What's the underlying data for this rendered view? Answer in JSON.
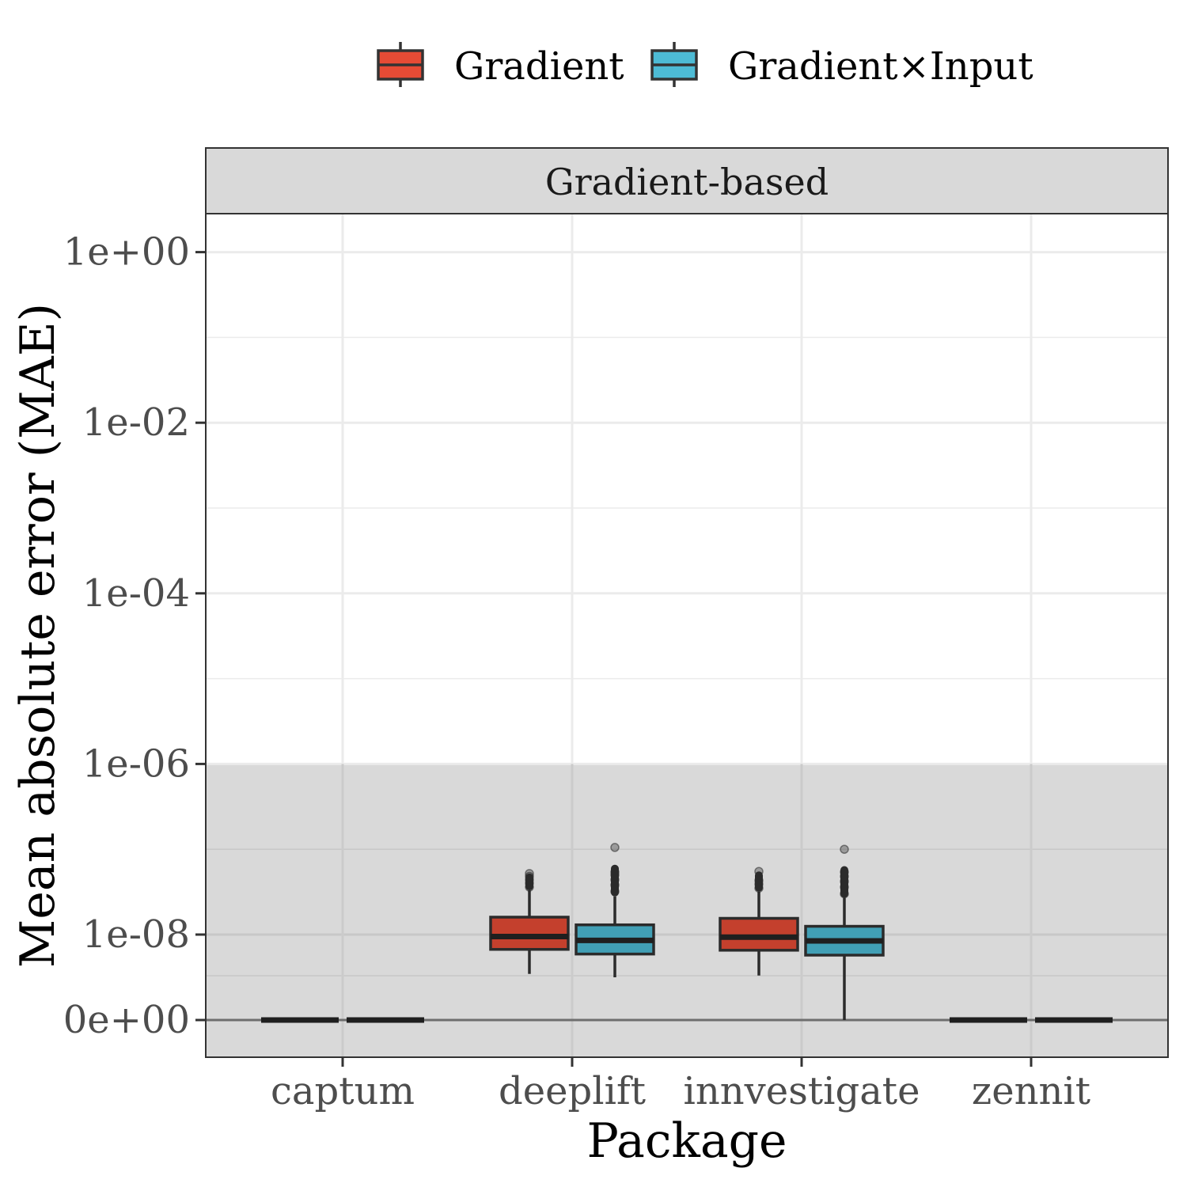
{
  "chart_data": {
    "type": "boxplot",
    "facet_title": "Gradient-based",
    "xlabel": "Package",
    "ylabel": "Mean absolute error (MAE)",
    "y_scale": "pseudo-log",
    "y_ticks": [
      "1e+00",
      "1e-02",
      "1e-04",
      "1e-06",
      "1e-08",
      "0e+00"
    ],
    "y_tick_values": [
      1,
      0.01,
      0.0001,
      1e-06,
      1e-08,
      0
    ],
    "shaded_region": {
      "from": 0,
      "to": 1e-06
    },
    "legend_position": "top",
    "grid": true,
    "categories": [
      "captum",
      "deeplift",
      "innvestigate",
      "zennit"
    ],
    "series": [
      {
        "name": "Gradient",
        "color": "#e64b35",
        "boxes": [
          {
            "category": "captum",
            "min": 0,
            "q1": 0,
            "median": 0,
            "q3": 0,
            "max": 0,
            "outliers": []
          },
          {
            "category": "deeplift",
            "min": 1.2e-09,
            "q1": 4.5e-09,
            "median": 9e-09,
            "q3": 1.6e-08,
            "max": 3.3e-08,
            "outliers": [
              3.6e-08,
              4e-08,
              4.4e-08,
              4.8e-08,
              5.2e-08
            ]
          },
          {
            "category": "innvestigate",
            "min": 1.1e-09,
            "q1": 4.3e-09,
            "median": 8.7e-09,
            "q3": 1.55e-08,
            "max": 3.2e-08,
            "outliers": [
              3.5e-08,
              3.9e-08,
              4.3e-08,
              5.5e-08
            ]
          },
          {
            "category": "zennit",
            "min": 0,
            "q1": 0,
            "median": 0,
            "q3": 0,
            "max": 0,
            "outliers": []
          }
        ]
      },
      {
        "name": "Gradient×Input",
        "color": "#4dbbd5",
        "boxes": [
          {
            "category": "captum",
            "min": 0,
            "q1": 0,
            "median": 0,
            "q3": 0,
            "max": 0,
            "outliers": []
          },
          {
            "category": "deeplift",
            "min": 1e-09,
            "q1": 3.5e-09,
            "median": 7.3e-09,
            "q3": 1.3e-08,
            "max": 2.8e-08,
            "outliers": [
              3.2e-08,
              3.8e-08,
              4.4e-08,
              5e-08,
              5.4e-08,
              1.05e-07
            ]
          },
          {
            "category": "innvestigate",
            "min": 0,
            "q1": 3.3e-09,
            "median": 7.1e-09,
            "q3": 1.25e-08,
            "max": 2.7e-08,
            "outliers": [
              3e-08,
              3.6e-08,
              4.2e-08,
              4.8e-08,
              5.4e-08,
              1e-07
            ]
          },
          {
            "category": "zennit",
            "min": 0,
            "q1": 0,
            "median": 0,
            "q3": 0,
            "max": 0,
            "outliers": []
          }
        ]
      }
    ]
  }
}
